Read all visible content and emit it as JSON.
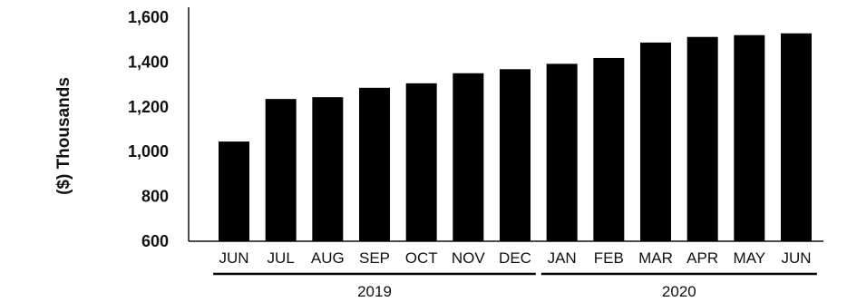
{
  "chart_data": {
    "type": "bar",
    "categories": [
      "JUN",
      "JUL",
      "AUG",
      "SEP",
      "OCT",
      "NOV",
      "DEC",
      "JAN",
      "FEB",
      "MAR",
      "APR",
      "MAY",
      "JUN"
    ],
    "values": [
      1045,
      1235,
      1243,
      1285,
      1305,
      1350,
      1368,
      1392,
      1418,
      1487,
      1512,
      1520,
      1528
    ],
    "title": "",
    "xlabel": "",
    "ylabel": "($)  Thousands",
    "ylim": [
      600,
      1600
    ],
    "yticks": [
      "1,600",
      "1,400",
      "1,200",
      "1,000",
      "800",
      "600"
    ],
    "ytick_values": [
      1600,
      1400,
      1200,
      1000,
      800,
      600
    ],
    "groups": [
      {
        "label": "2019",
        "count": 7
      },
      {
        "label": "2020",
        "count": 6
      }
    ],
    "bar_color": "#000000",
    "grid": false,
    "legend": "none"
  }
}
